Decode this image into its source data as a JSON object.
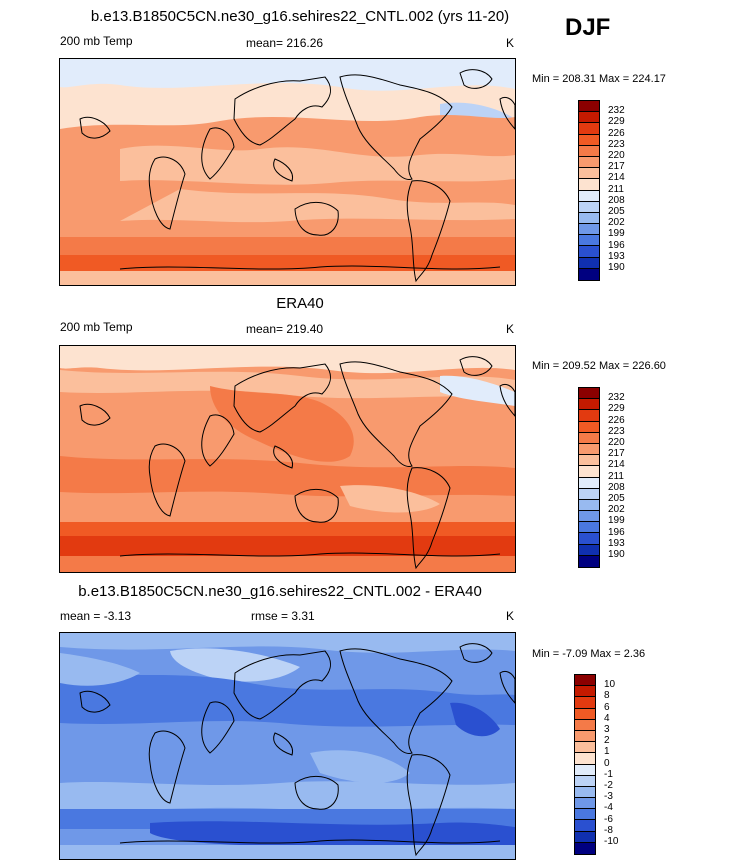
{
  "season": "DJF",
  "panels": [
    {
      "title": "b.e13.B1850C5CN.ne30_g16.sehires22_CNTL.002 (yrs 11-20)",
      "left_label": "200 mb Temp",
      "center_label": "mean= 216.26",
      "unit": "K",
      "minmax": "Min = 208.31 Max = 224.17",
      "scale": "abs",
      "theme": "model"
    },
    {
      "title": "ERA40",
      "left_label": "200 mb Temp",
      "center_label": "mean= 219.40",
      "unit": "K",
      "minmax": "Min = 209.52 Max = 226.60",
      "scale": "abs",
      "theme": "obs"
    },
    {
      "title": "b.e13.B1850C5CN.ne30_g16.sehires22_CNTL.002 - ERA40",
      "left_label": "mean =  -3.13",
      "center_label": "rmse =   3.31",
      "unit": "K",
      "minmax": "Min =  -7.09 Max =   2.36",
      "scale": "diff",
      "theme": "diff"
    }
  ],
  "colorbars": {
    "abs": {
      "labels": [
        "232",
        "229",
        "226",
        "223",
        "220",
        "217",
        "214",
        "211",
        "208",
        "205",
        "202",
        "199",
        "196",
        "193",
        "190"
      ],
      "colors": [
        "#8b0000",
        "#c41a00",
        "#e23a10",
        "#f05a24",
        "#f47a48",
        "#f89a6e",
        "#fbbf9c",
        "#fde3d0",
        "#e1ecfb",
        "#bcd3f6",
        "#98baf0",
        "#6f98e8",
        "#4a78e0",
        "#2a50d0",
        "#1030b0",
        "#000080"
      ]
    },
    "diff": {
      "labels": [
        "10",
        "8",
        "6",
        "4",
        "3",
        "2",
        "1",
        "0",
        "-1",
        "-2",
        "-3",
        "-4",
        "-6",
        "-8",
        "-10"
      ],
      "colors": [
        "#8b0000",
        "#c41a00",
        "#e23a10",
        "#f05a24",
        "#f47a48",
        "#f89a6e",
        "#fbbf9c",
        "#fde3d0",
        "#e1ecfb",
        "#bcd3f6",
        "#98baf0",
        "#6f98e8",
        "#4a78e0",
        "#2a50d0",
        "#1030b0",
        "#000080"
      ]
    }
  }
}
